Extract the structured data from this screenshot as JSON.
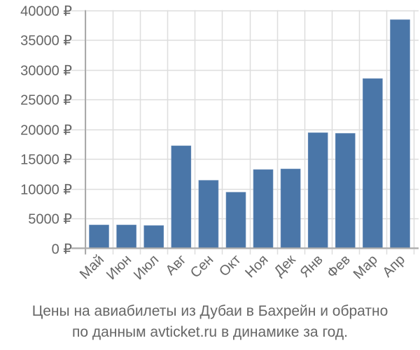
{
  "chart_data": {
    "type": "bar",
    "title": "Цены на авиабилеты из Дубаи в Бахрейн и обратно по данным avticket.ru в динамике за год.",
    "xlabel": "",
    "ylabel": "",
    "categories": [
      "Май",
      "Июн",
      "Июл",
      "Авг",
      "Сен",
      "Окт",
      "Ноя",
      "Дек",
      "Янв",
      "Фев",
      "Мар",
      "Апр"
    ],
    "values": [
      3900,
      3900,
      3800,
      17200,
      11400,
      9400,
      13200,
      13300,
      19400,
      19300,
      28500,
      38400
    ],
    "ylim": [
      0,
      40000
    ],
    "yticks": [
      0,
      5000,
      10000,
      15000,
      20000,
      25000,
      30000,
      35000,
      40000
    ],
    "ytick_labels": [
      "0 ₽",
      "5000 ₽",
      "10000 ₽",
      "15000 ₽",
      "20000 ₽",
      "25000 ₽",
      "30000 ₽",
      "35000 ₽",
      "40000 ₽"
    ],
    "currency_suffix": " ₽",
    "grid": true,
    "legend": null,
    "bar_color": "#4a76a8"
  },
  "caption": {
    "line1": "Цены на авиабилеты из Дубаи в Бахрейн и обратно",
    "line2": "по данным avticket.ru в динамике за год."
  }
}
